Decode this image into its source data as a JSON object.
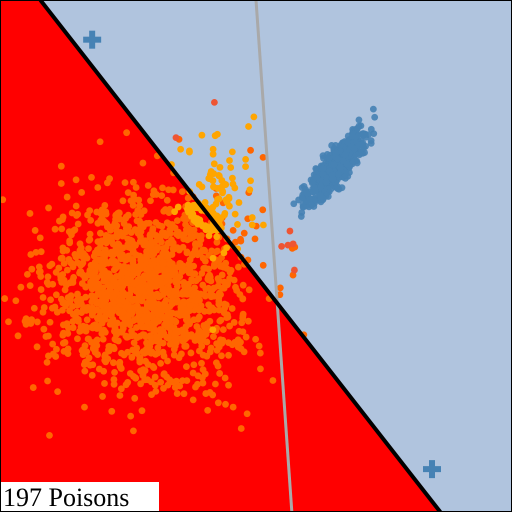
{
  "chart_data": {
    "type": "scatter",
    "title": "",
    "xlabel": "",
    "ylabel": "",
    "xlim": [
      -4,
      4
    ],
    "ylim": [
      -4,
      4
    ],
    "grid": false,
    "regions": {
      "poison_side_color": "#ff0000",
      "clean_side_color": "#b0c4de"
    },
    "decision_boundaries": [
      {
        "name": "poisoned",
        "color": "#000000",
        "points": [
          [
            -3.37,
            4.0
          ],
          [
            2.88,
            -4.0
          ]
        ]
      },
      {
        "name": "clean",
        "color": "#a9a9a9",
        "points": [
          [
            0.0,
            4.0
          ],
          [
            0.56,
            -4.0
          ]
        ]
      }
    ],
    "centroids": [
      {
        "class": "orange",
        "x": -2.56,
        "y": 3.38,
        "marker": "plus",
        "color": "#4682b4"
      },
      {
        "class": "blue",
        "x": 2.75,
        "y": -3.33,
        "marker": "plus",
        "color": "#4682b4"
      }
    ],
    "clusters": [
      {
        "name": "blue",
        "color": "#4682b4",
        "count": 650,
        "center": [
          1.25,
          1.4
        ],
        "spread": [
          0.32,
          0.09
        ],
        "angle_deg": 52
      },
      {
        "name": "orange",
        "color": "#ff6600",
        "count": 1500,
        "center": [
          -1.75,
          -0.55
        ],
        "spread": [
          0.75,
          0.75
        ],
        "angle_deg": 0
      }
    ],
    "poison_points": {
      "count": 197,
      "color": "#ffa500"
    },
    "outlier_points": {
      "color": "#ee5533",
      "x": [
        -0.65,
        -1.25,
        0.4,
        0.5,
        0.58,
        0.6,
        0.53
      ],
      "y": [
        2.4,
        1.85,
        0.15,
        0.17,
        0.19,
        -0.22,
        0.39
      ]
    }
  },
  "annotation": {
    "text": "197 Poisons"
  }
}
